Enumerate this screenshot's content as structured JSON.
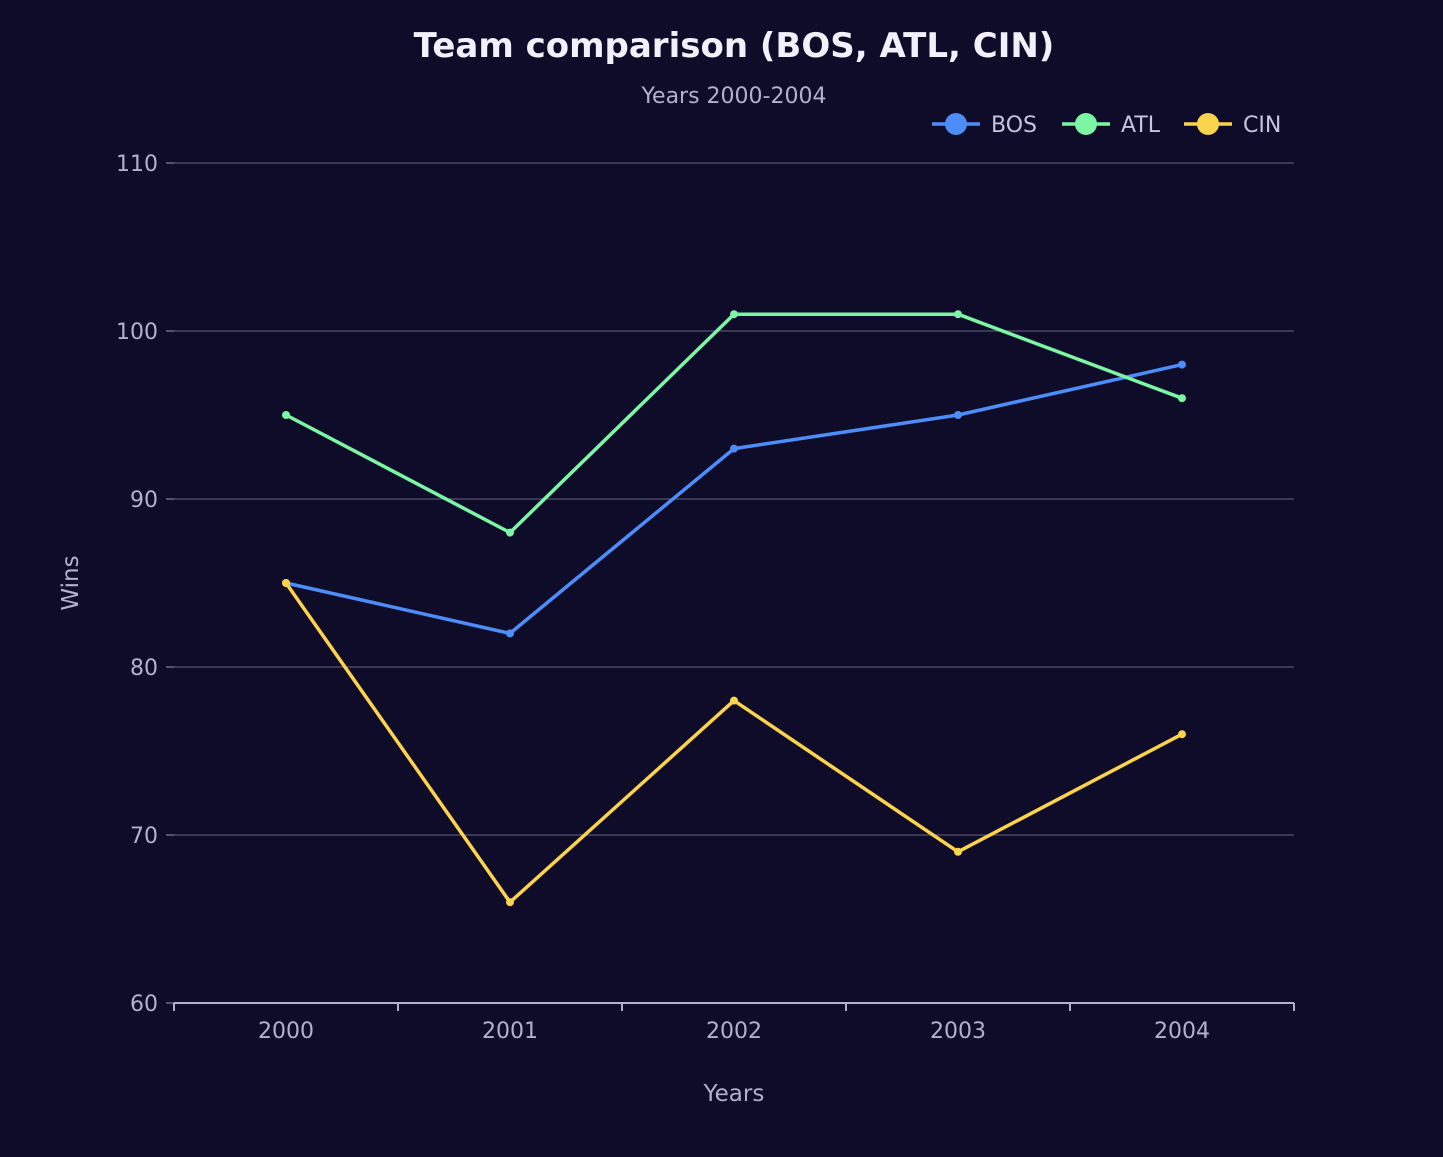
{
  "chart_data": {
    "type": "line",
    "title": "Team comparison (BOS, ATL, CIN)",
    "subtitle": "Years 2000-2004",
    "xlabel": "Years",
    "ylabel": "Wins",
    "categories": [
      "2000",
      "2001",
      "2002",
      "2003",
      "2004"
    ],
    "ylim": [
      60,
      110
    ],
    "yticks": [
      60,
      70,
      80,
      90,
      100,
      110
    ],
    "grid": true,
    "legend_position": "top-right",
    "series": [
      {
        "name": "BOS",
        "color": "#4d8dfa",
        "values": [
          85,
          82,
          93,
          95,
          98
        ]
      },
      {
        "name": "ATL",
        "color": "#7cf5a5",
        "values": [
          95,
          88,
          101,
          101,
          96
        ]
      },
      {
        "name": "CIN",
        "color": "#fcd34d",
        "values": [
          85,
          66,
          78,
          69,
          76
        ]
      }
    ]
  }
}
